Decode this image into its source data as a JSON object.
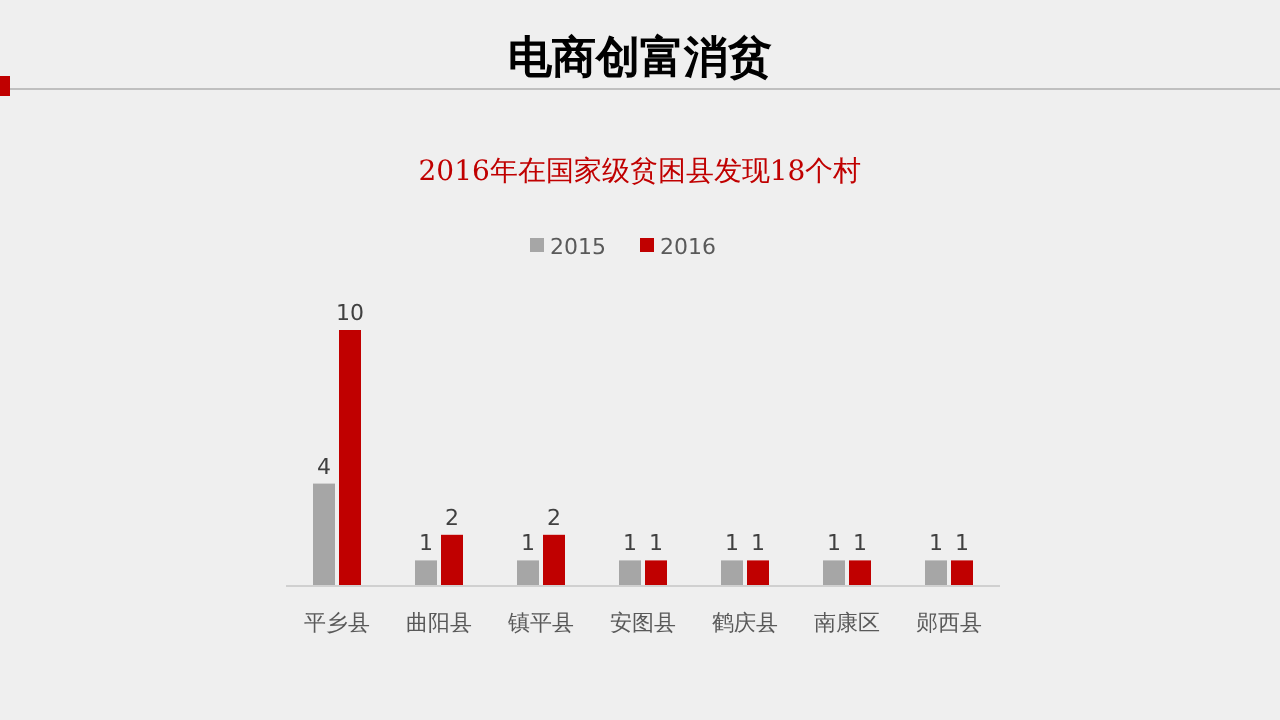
{
  "chart_data": {
    "type": "bar",
    "title": "电商创富消贫",
    "subtitle": "2016年在国家级贫困县发现18个村",
    "categories": [
      "平乡县",
      "曲阳县",
      "镇平县",
      "安图县",
      "鹤庆县",
      "南康区",
      "郧西县"
    ],
    "series": [
      {
        "name": "2015",
        "color": "#a6a6a6",
        "values": [
          4,
          1,
          1,
          1,
          1,
          1,
          1
        ]
      },
      {
        "name": "2016",
        "color": "#c00000",
        "values": [
          10,
          2,
          2,
          1,
          1,
          1,
          1
        ]
      }
    ],
    "data_labels": true,
    "legend": "top"
  }
}
